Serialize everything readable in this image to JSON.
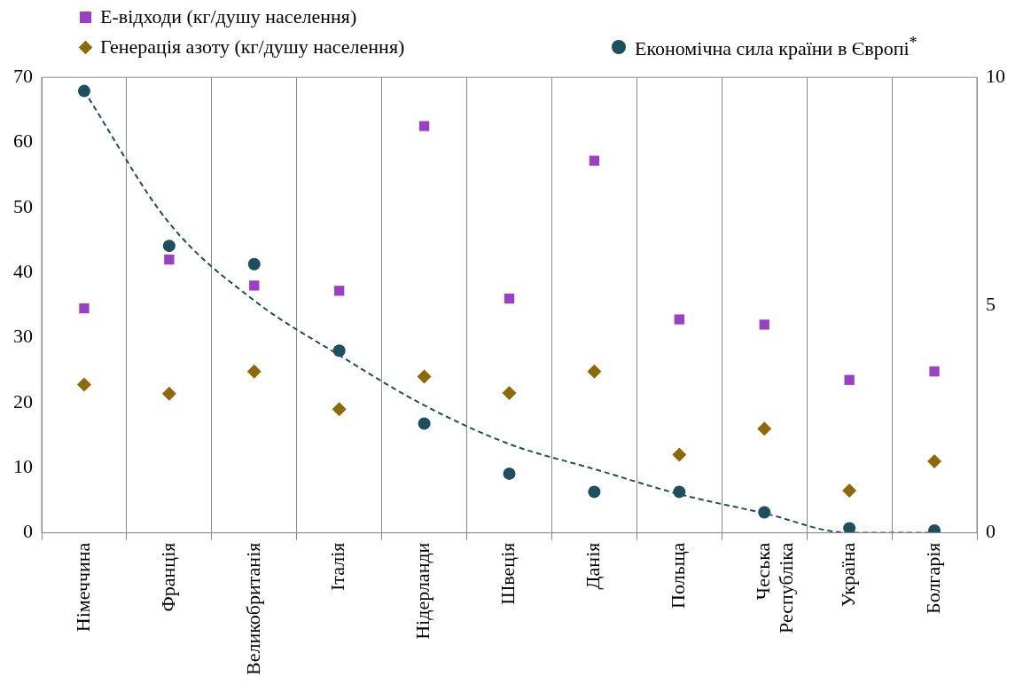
{
  "chart_data": {
    "type": "scatter",
    "categories": [
      "Німеччина",
      "Франція",
      "Великобританія",
      "Італія",
      "Нідерланди",
      "Швеція",
      "Данія",
      "Польща",
      "Чеська\nРеспубліка",
      "Україна",
      "Болгарія"
    ],
    "ylim": [
      0,
      70
    ],
    "yticks": [
      0,
      10,
      20,
      30,
      40,
      50,
      60,
      70
    ],
    "y2lim": [
      0,
      10
    ],
    "y2ticks": [
      0,
      5,
      10
    ],
    "grid": "x",
    "legend": "top",
    "series": [
      {
        "name": "Е-відходи (кг/душу населення)",
        "color": "#9b40c4",
        "marker": "square",
        "values": [
          34.5,
          42,
          38,
          37.2,
          62.5,
          36,
          57.2,
          32.8,
          32,
          23.5,
          24.8
        ]
      },
      {
        "name": "Генерація азоту (кг/душу населення)",
        "color": "#8c6a0a",
        "marker": "diamond",
        "values": [
          22.8,
          21.4,
          24.8,
          19,
          24,
          21.5,
          24.8,
          12,
          16,
          6.5,
          11
        ]
      },
      {
        "name": "Економічна сила країни в Європі$^{*}$",
        "color": "#1f4e5f",
        "marker": "circle",
        "axis": "y2",
        "values": [
          9.7,
          6.3,
          5.9,
          4,
          2.4,
          1.3,
          0.9,
          0.9,
          0.45,
          0.1,
          0.05
        ]
      },
      {
        "type": "line",
        "color": "#1f4e5f",
        "line_style": "dashed",
        "marker": "none",
        "axis": "y2",
        "values": [
          9.7,
          6.8,
          5.1,
          3.9,
          2.8,
          1.95,
          1.4,
          0.85,
          0.43,
          0,
          0
        ]
      }
    ]
  }
}
